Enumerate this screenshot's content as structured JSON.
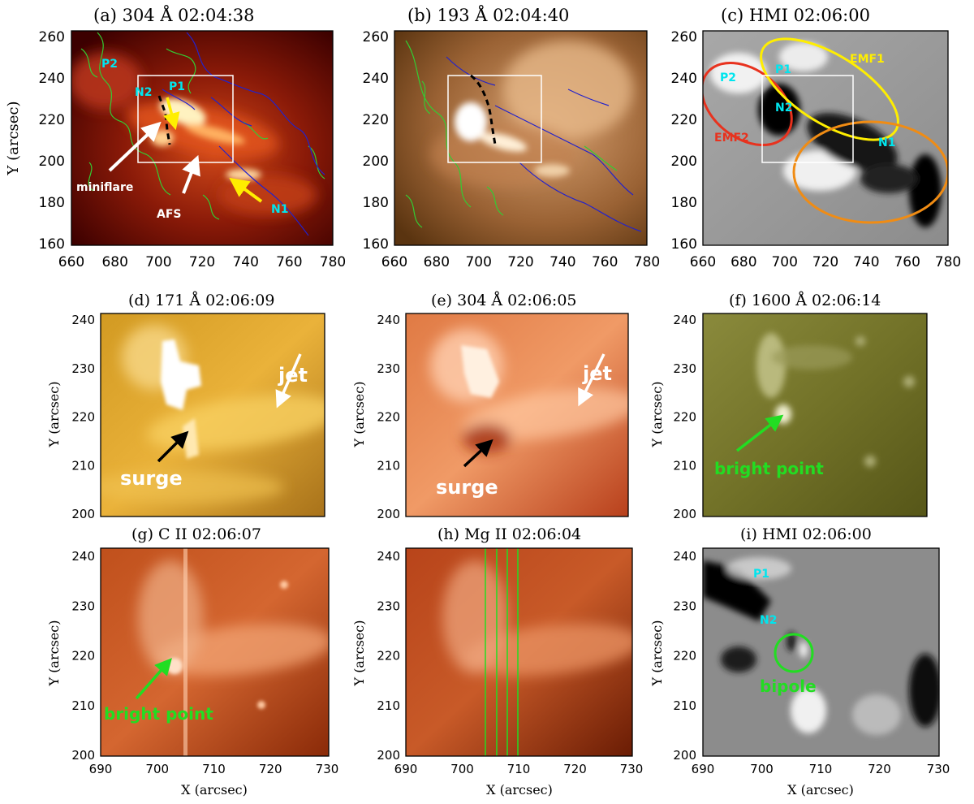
{
  "figure": {
    "panels": [
      {
        "id": "a",
        "title": "(a)  304  Å 02:04:38",
        "kind": "aia304",
        "y_label": "Y (arcsec)",
        "x_label": ""
      },
      {
        "id": "b",
        "title": "(b)  193  Å 02:04:40",
        "kind": "aia193",
        "y_label": "",
        "x_label": ""
      },
      {
        "id": "c",
        "title": "(c)  HMI  02:06:00",
        "kind": "hmi",
        "y_label": "",
        "x_label": ""
      },
      {
        "id": "d",
        "title": "(d)  171  Å 02:06:09",
        "kind": "aia171",
        "y_label": "Y (arcsec)",
        "x_label": ""
      },
      {
        "id": "e",
        "title": "(e)  304  Å 02:06:05",
        "kind": "aia304z",
        "y_label": "Y (arcsec)",
        "x_label": ""
      },
      {
        "id": "f",
        "title": "(f)  1600  Å 02:06:14",
        "kind": "aia1600",
        "y_label": "Y (arcsec)",
        "x_label": ""
      },
      {
        "id": "g",
        "title": "(g)  C II  02:06:07",
        "kind": "iris",
        "y_label": "Y (arcsec)",
        "x_label": "X (arcsec)"
      },
      {
        "id": "h",
        "title": "(h)  Mg II  02:06:04",
        "kind": "iris",
        "y_label": "Y (arcsec)",
        "x_label": "X (arcsec)"
      },
      {
        "id": "i",
        "title": "(i)  HMI  02:06:00",
        "kind": "hmiz",
        "y_label": "Y (arcsec)",
        "x_label": "X (arcsec)"
      }
    ],
    "top_row_axes": {
      "x_ticks": [
        "660",
        "680",
        "700",
        "720",
        "740",
        "760",
        "780"
      ],
      "y_ticks": [
        "160",
        "180",
        "200",
        "220",
        "240",
        "260"
      ]
    },
    "zoom_axes": {
      "x_ticks": [
        "690",
        "700",
        "710",
        "720",
        "730"
      ],
      "y_ticks": [
        "200",
        "210",
        "220",
        "230",
        "240"
      ]
    },
    "annotations": {
      "a": {
        "p2": "P2",
        "n2": "N2",
        "p1": "P1",
        "n1": "N1",
        "miniflare": "miniflare",
        "afs": "AFS"
      },
      "c": {
        "p2": "P2",
        "p1": "P1",
        "n2": "N2",
        "n1": "N1",
        "emf1": "EMF1",
        "emf2": "EMF2"
      },
      "d": {
        "jet": "jet",
        "surge": "surge"
      },
      "e": {
        "jet": "jet",
        "surge": "surge"
      },
      "f": {
        "bright": "bright point"
      },
      "g": {
        "bright": "bright point"
      },
      "i": {
        "p1": "P1",
        "n2": "N2",
        "bipole": "bipole"
      }
    },
    "colors": {
      "cyan_label": "#00e5ee",
      "yellow": "#ffee00",
      "red": "#e8321e",
      "orange": "#f08c14",
      "green": "#22dd22",
      "contour_pos": "#33cc33",
      "contour_neg": "#2222cc"
    }
  }
}
